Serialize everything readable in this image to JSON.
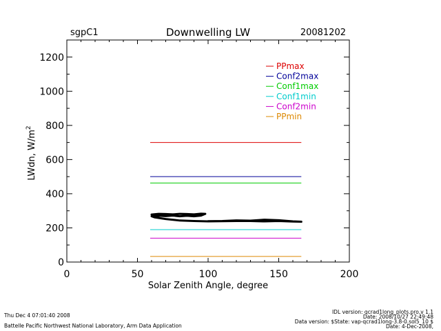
{
  "chart_data": {
    "type": "line",
    "site": "sgpC1",
    "title": "Downwelling LW",
    "date": "20081202",
    "xlabel": "Solar Zenith Angle, degree",
    "ylabel_main": "LWdn, W/m",
    "ylabel_sup": "2",
    "xlim": [
      0,
      200
    ],
    "ylim": [
      0,
      1300
    ],
    "x_ticks": [
      0,
      50,
      100,
      150,
      200
    ],
    "y_ticks": [
      0,
      200,
      400,
      600,
      800,
      1000,
      1200
    ],
    "x_tick_labels": [
      "0",
      "50",
      "100",
      "150",
      "200"
    ],
    "y_tick_labels": [
      "0",
      "200",
      "400",
      "600",
      "800",
      "1000",
      "1200"
    ],
    "legend_position": "top-right",
    "series": [
      {
        "name": "PPmax",
        "color": "#dd0000",
        "x": [
          59,
          166
        ],
        "y": [
          700,
          700
        ]
      },
      {
        "name": "Conf2max",
        "color": "#000099",
        "x": [
          59,
          166
        ],
        "y": [
          500,
          500
        ]
      },
      {
        "name": "Conf1max",
        "color": "#00cc00",
        "x": [
          59,
          166
        ],
        "y": [
          463,
          463
        ]
      },
      {
        "name": "Conf1min",
        "color": "#00cccc",
        "x": [
          59,
          166
        ],
        "y": [
          190,
          190
        ]
      },
      {
        "name": "Conf2min",
        "color": "#cc00cc",
        "x": [
          59,
          166
        ],
        "y": [
          140,
          140
        ]
      },
      {
        "name": "PPmin",
        "color": "#dd8800",
        "x": [
          59,
          166
        ],
        "y": [
          33,
          33
        ]
      }
    ],
    "observed": {
      "name": "LWdn",
      "color": "#000000",
      "x": [
        60,
        65,
        70,
        75,
        80,
        85,
        90,
        95,
        98,
        95,
        90,
        85,
        80,
        75,
        70,
        65,
        60,
        62,
        70,
        80,
        90,
        100,
        110,
        120,
        130,
        140,
        150,
        160,
        166,
        160,
        150,
        140,
        130,
        120,
        110,
        100
      ],
      "y": [
        278,
        282,
        281,
        279,
        282,
        281,
        279,
        283,
        282,
        272,
        268,
        271,
        268,
        272,
        269,
        271,
        268,
        262,
        252,
        243,
        240,
        238,
        239,
        240,
        240,
        238,
        240,
        237,
        236,
        238,
        245,
        248,
        242,
        244,
        240,
        239
      ]
    }
  },
  "footer": {
    "run_time": "Thu Dec  4 07:01:40 2008",
    "org": "Battelle Pacific Northwest National Laboratory, Arm Data Application",
    "idl_version": "IDL version: qcrad1long_plots.pro,v 1.1",
    "idl_date": "Date: 2008/10/27 22:49:48",
    "data_version": "Data version: $State: vap-qcrad1long-3.8-0.sol5_10 $",
    "data_date": "Date: 4-Dec-2008,"
  }
}
